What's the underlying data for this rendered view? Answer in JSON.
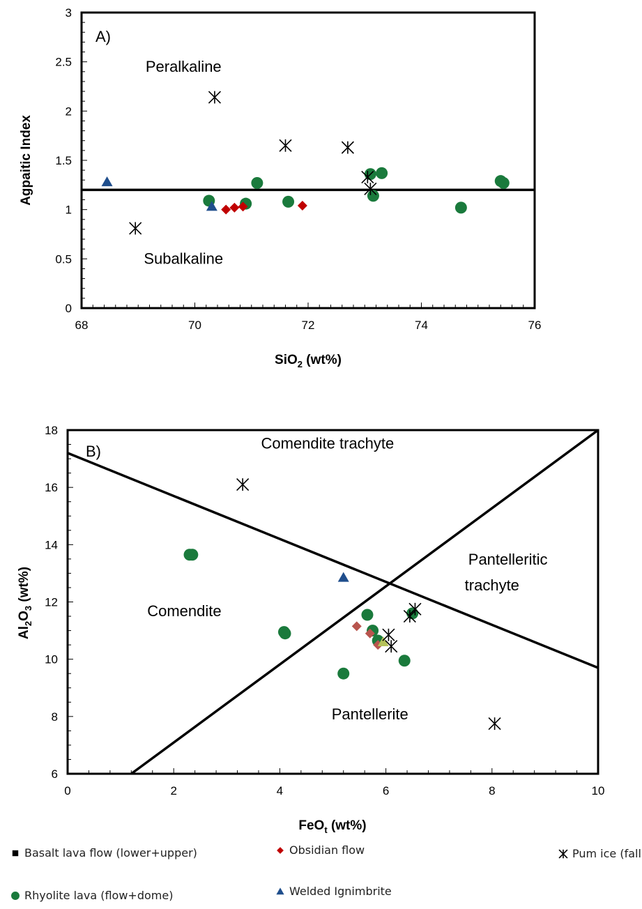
{
  "chart_data": [
    {
      "type": "scatter",
      "panel_label": "A)",
      "xlabel": "SiO",
      "xlabel_sub": "2",
      "xlabel_tail": " (wt%)",
      "ylabel": "Agpaitic Index",
      "xlim": [
        68,
        76
      ],
      "ylim": [
        0,
        3
      ],
      "xticks": [
        "68",
        "70",
        "72",
        "74",
        "76"
      ],
      "yticks": [
        "0",
        "0.5",
        "1",
        "1.5",
        "2",
        "2.5",
        "3"
      ],
      "reference_lines": [
        {
          "from": [
            68,
            1.2
          ],
          "to": [
            76,
            1.2
          ]
        }
      ],
      "annotations": [
        {
          "text": "Peralkaline",
          "x": 69.8,
          "y": 2.4
        },
        {
          "text": "Subalkaline",
          "x": 69.8,
          "y": 0.45
        }
      ],
      "series": [
        {
          "name": "Rhyolite lava (flow+dome)",
          "marker": "circle",
          "color": "#1a7a3c",
          "points": [
            [
              70.25,
              1.09
            ],
            [
              70.9,
              1.06
            ],
            [
              71.1,
              1.27
            ],
            [
              71.65,
              1.08
            ],
            [
              73.1,
              1.36
            ],
            [
              73.15,
              1.14
            ],
            [
              73.3,
              1.37
            ],
            [
              74.7,
              1.02
            ],
            [
              75.4,
              1.29
            ],
            [
              75.45,
              1.27
            ]
          ]
        },
        {
          "name": "Obsidian flow",
          "marker": "diamond",
          "color": "#c00000",
          "points": [
            [
              70.55,
              1.0
            ],
            [
              70.7,
              1.02
            ],
            [
              70.85,
              1.03
            ],
            [
              71.9,
              1.04
            ]
          ]
        },
        {
          "name": "Welded Ignimbrite",
          "marker": "triangle",
          "color": "#1f4e8c",
          "points": [
            [
              68.45,
              1.28
            ],
            [
              70.3,
              1.03
            ]
          ]
        },
        {
          "name": "Pumice (fall+flow)",
          "marker": "star",
          "color": "#000000",
          "points": [
            [
              68.95,
              0.81
            ],
            [
              70.35,
              2.14
            ],
            [
              71.6,
              1.65
            ],
            [
              72.7,
              1.63
            ],
            [
              73.05,
              1.33
            ],
            [
              73.1,
              1.21
            ]
          ]
        }
      ]
    },
    {
      "type": "scatter",
      "panel_label": "B)",
      "xlabel": "FeO",
      "xlabel_sub": "t",
      "xlabel_tail": " (wt%)",
      "ylabel": "Al",
      "ylabel_sub1": "2",
      "ylabel_mid": "O",
      "ylabel_sub2": "3",
      "ylabel_tail": " (wt%)",
      "xlim": [
        0,
        10
      ],
      "ylim": [
        6,
        18
      ],
      "xticks": [
        "0",
        "2",
        "4",
        "6",
        "8",
        "10"
      ],
      "yticks": [
        "6",
        "8",
        "10",
        "12",
        "14",
        "16",
        "18"
      ],
      "reference_lines": [
        {
          "from": [
            0,
            17.2
          ],
          "to": [
            10,
            9.7
          ]
        },
        {
          "from": [
            1.2,
            6
          ],
          "to": [
            10,
            18
          ]
        }
      ],
      "annotations": [
        {
          "text": "Comendite trachyte",
          "x": 4.9,
          "y": 17.35
        },
        {
          "text": "Pantelleritic",
          "x": 8.3,
          "y": 13.3
        },
        {
          "text": "trachyte",
          "x": 8.0,
          "y": 12.4
        },
        {
          "text": "Comendite",
          "x": 2.2,
          "y": 11.5
        },
        {
          "text": "Pantellerite",
          "x": 5.7,
          "y": 7.9
        }
      ],
      "series": [
        {
          "name": "Rhyolite lava (flow+dome)",
          "marker": "circle",
          "color": "#1a7a3c",
          "points": [
            [
              2.3,
              13.65
            ],
            [
              2.35,
              13.65
            ],
            [
              4.08,
              10.95
            ],
            [
              4.1,
              10.9
            ],
            [
              5.2,
              9.5
            ],
            [
              5.65,
              11.55
            ],
            [
              5.75,
              11.0
            ],
            [
              5.85,
              10.65
            ],
            [
              6.35,
              9.95
            ],
            [
              6.5,
              11.6
            ]
          ]
        },
        {
          "name": "Obsidian flow",
          "marker": "diamond",
          "color": "#b8554e",
          "points": [
            [
              5.45,
              11.15
            ],
            [
              5.7,
              10.9
            ],
            [
              5.85,
              10.5
            ]
          ]
        },
        {
          "name": "Welded Ignimbrite",
          "marker": "triangle",
          "color": "#1f4e8c",
          "points": [
            [
              5.2,
              12.85
            ]
          ]
        },
        {
          "name": "Basalt lava flow (lower+upper)",
          "marker": "triangle",
          "color": "#b5c25a",
          "points": [
            [
              5.95,
              10.6
            ]
          ]
        },
        {
          "name": "Pumice (fall+flow)",
          "marker": "star",
          "color": "#000000",
          "points": [
            [
              3.3,
              16.1
            ],
            [
              6.05,
              10.85
            ],
            [
              6.1,
              10.45
            ],
            [
              6.45,
              11.5
            ],
            [
              6.55,
              11.75
            ],
            [
              8.05,
              7.75
            ]
          ]
        }
      ]
    }
  ],
  "legend": [
    {
      "label": "Basalt lava flow (lower+upper)",
      "marker": "square",
      "color": "#000000"
    },
    {
      "label": "Obsidian flow",
      "marker": "diamond",
      "color": "#c00000"
    },
    {
      "label": "Pum ice (fall+flow)",
      "marker": "star",
      "color": "#000000"
    },
    {
      "label": "Rhyolite lava (flow+dome)",
      "marker": "circle",
      "color": "#1a7a3c"
    },
    {
      "label": "Welded Ignimbrite",
      "marker": "triangle",
      "color": "#1f4e8c"
    }
  ]
}
